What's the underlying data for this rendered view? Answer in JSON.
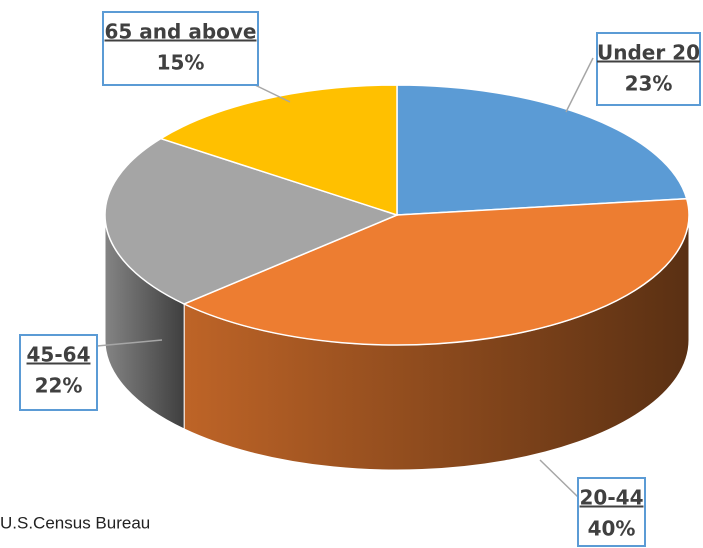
{
  "chart_data": {
    "type": "pie3d",
    "categories": [
      "Under 20",
      "20-44",
      "45-64",
      "65 and above"
    ],
    "values": [
      23,
      40,
      22,
      15
    ],
    "value_labels": [
      "23%",
      "40%",
      "22%",
      "15%"
    ],
    "colors": [
      "#5b9bd5",
      "#ed7d31",
      "#a5a5a5",
      "#ffc000"
    ],
    "source": "U.S.Census Bureau"
  }
}
